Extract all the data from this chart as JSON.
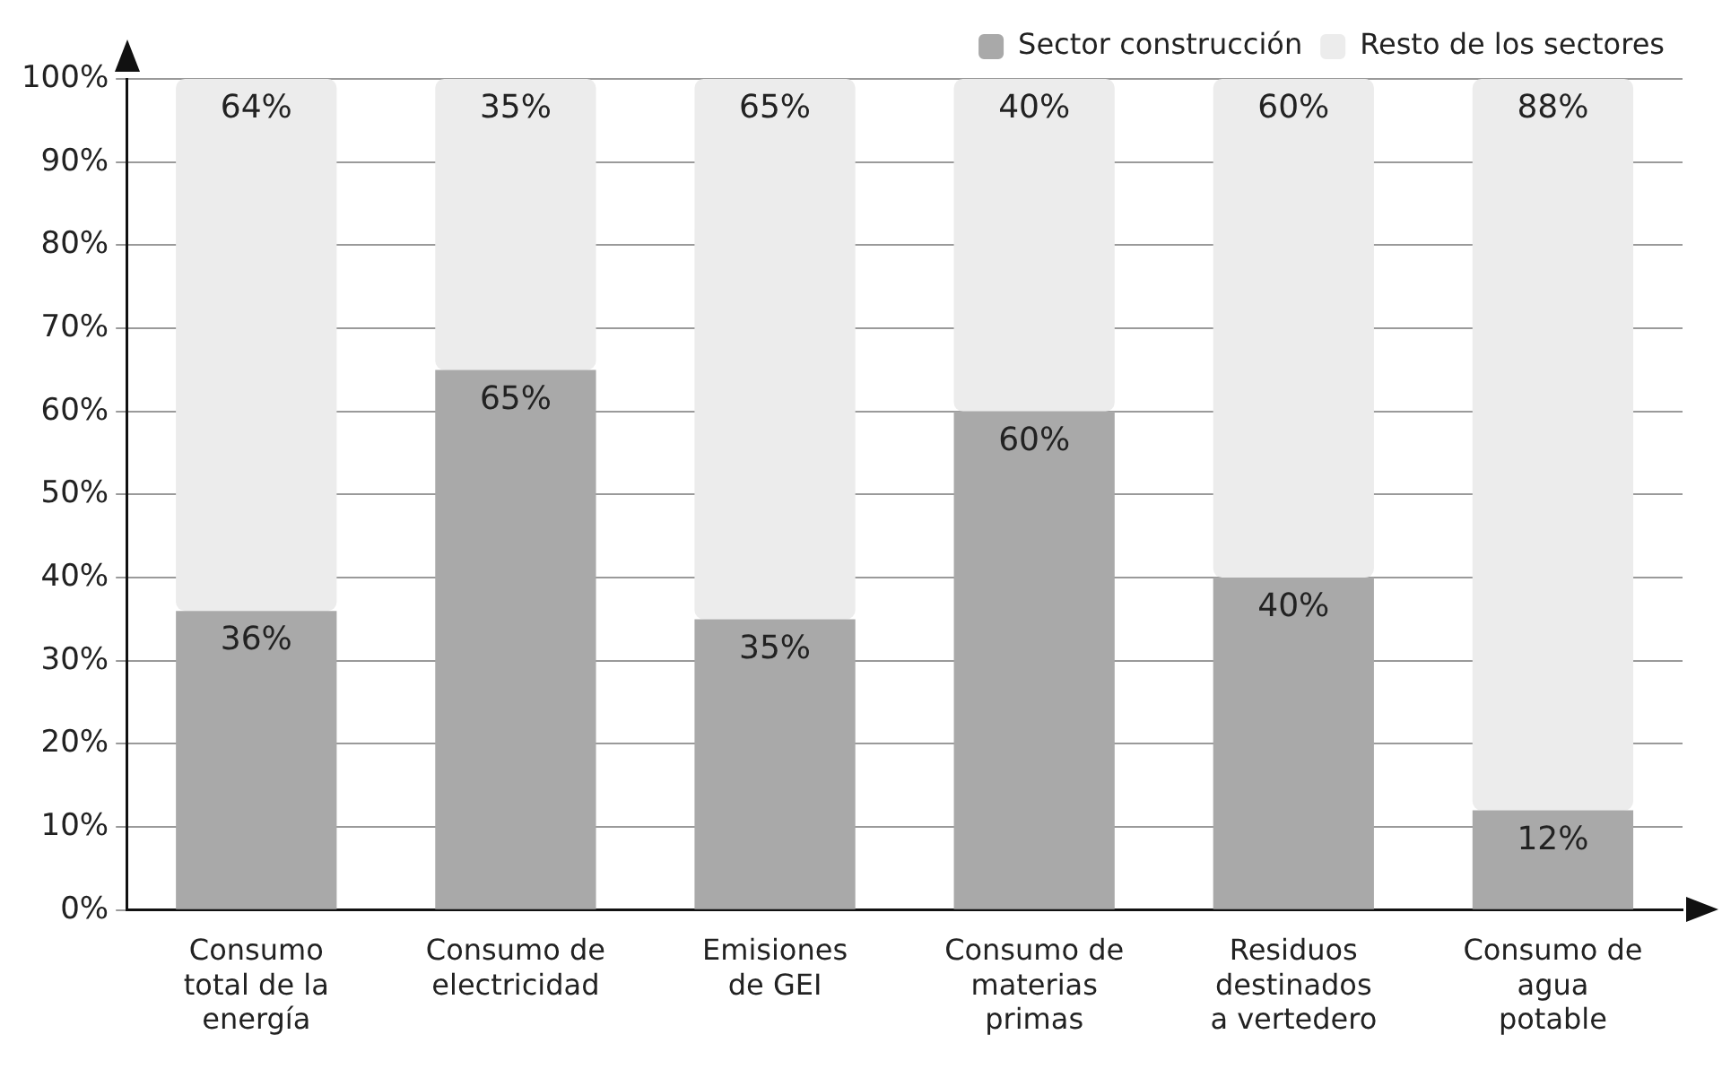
{
  "chart_data": {
    "type": "bar",
    "stacked": true,
    "categories": [
      "Consumo total de la energía",
      "Consumo de electricidad",
      "Emisiones de GEI",
      "Consumo de materias primas",
      "Residuos destinados a vertedero",
      "Consumo de agua potable"
    ],
    "series": [
      {
        "name": "Sector construcción",
        "color": "#a9a9a9",
        "values": [
          36,
          65,
          35,
          60,
          40,
          12
        ],
        "value_labels": [
          "36%",
          "65%",
          "35%",
          "60%",
          "40%",
          "12%"
        ]
      },
      {
        "name": "Resto de los sectores",
        "color": "#ececec",
        "values": [
          64,
          35,
          65,
          40,
          60,
          88
        ],
        "value_labels": [
          "64%",
          "35%",
          "65%",
          "40%",
          "60%",
          "88%"
        ]
      }
    ],
    "ylim": [
      0,
      100
    ],
    "yticks": [
      {
        "value": 0,
        "label": "0%"
      },
      {
        "value": 10,
        "label": "10%"
      },
      {
        "value": 20,
        "label": "20%"
      },
      {
        "value": 30,
        "label": "30%"
      },
      {
        "value": 40,
        "label": "40%"
      },
      {
        "value": 50,
        "label": "50%"
      },
      {
        "value": 60,
        "label": "60%"
      },
      {
        "value": 70,
        "label": "70%"
      },
      {
        "value": 80,
        "label": "80%"
      },
      {
        "value": 90,
        "label": "90%"
      },
      {
        "value": 100,
        "label": "100%"
      }
    ],
    "grid": "y",
    "legend": "top right"
  }
}
